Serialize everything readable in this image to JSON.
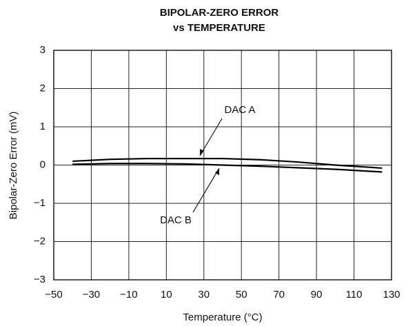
{
  "chart_data": {
    "type": "line",
    "title": "BIPOLAR-ZERO ERROR",
    "subtitle": "vs TEMPERATURE",
    "x_label": "Temperature (°C)",
    "y_label": "Bipolar-Zero Error (mV)",
    "x": [
      -40,
      -20,
      0,
      20,
      40,
      60,
      80,
      100,
      125
    ],
    "series": [
      {
        "name": "DAC A",
        "color": "#000000",
        "values": [
          0.1,
          0.15,
          0.17,
          0.17,
          0.17,
          0.14,
          0.08,
          0.0,
          -0.08
        ]
      },
      {
        "name": "DAC B",
        "color": "#000000",
        "values": [
          0.02,
          0.04,
          0.04,
          0.03,
          0.0,
          -0.03,
          -0.07,
          -0.11,
          -0.18
        ]
      }
    ],
    "xlim": [
      -50,
      130
    ],
    "xticks": [
      {
        "value": -50,
        "label": "−50"
      },
      {
        "value": -30,
        "label": "−30"
      },
      {
        "value": -10,
        "label": "−10"
      },
      10,
      30,
      50,
      70,
      90,
      110,
      130
    ],
    "ylim": [
      -3,
      3
    ],
    "yticks": [
      {
        "value": -3,
        "label": "−3"
      },
      {
        "value": -2,
        "label": "−2"
      },
      {
        "value": -1,
        "label": "−1"
      },
      0,
      1,
      2,
      3
    ],
    "grid": true
  }
}
